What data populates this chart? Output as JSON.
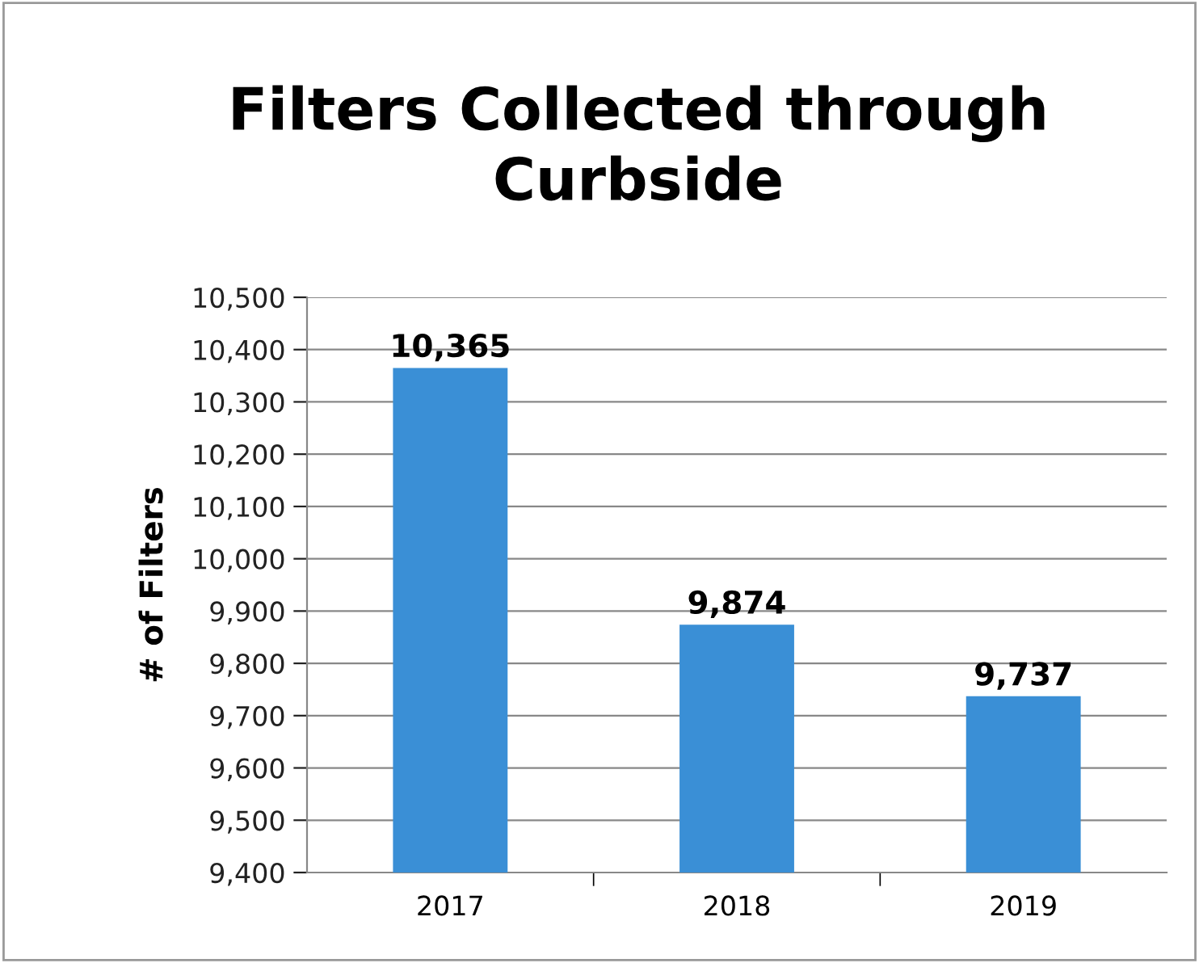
{
  "chart_data": {
    "type": "bar",
    "title": "Filters Collected through\nCurbside",
    "ylabel": "# of Filters",
    "categories": [
      "2017",
      "2018",
      "2019"
    ],
    "values": [
      10365,
      9874,
      9737
    ],
    "value_labels": [
      "10,365",
      "9,874",
      "9,737"
    ],
    "color": "#3a8fd6",
    "ylim": [
      9400,
      10500
    ],
    "yticks": [
      {
        "value": 9400,
        "label": "9,400"
      },
      {
        "value": 9500,
        "label": "9,500"
      },
      {
        "value": 9600,
        "label": "9,600"
      },
      {
        "value": 9700,
        "label": "9,700"
      },
      {
        "value": 9800,
        "label": "9,800"
      },
      {
        "value": 9900,
        "label": "9,900"
      },
      {
        "value": 10000,
        "label": "10,000"
      },
      {
        "value": 10100,
        "label": "10,100"
      },
      {
        "value": 10200,
        "label": "10,200"
      },
      {
        "value": 10300,
        "label": "10,300"
      },
      {
        "value": 10400,
        "label": "10,400"
      },
      {
        "value": 10500,
        "label": "10,500"
      }
    ],
    "grid": "y",
    "legend": false
  }
}
